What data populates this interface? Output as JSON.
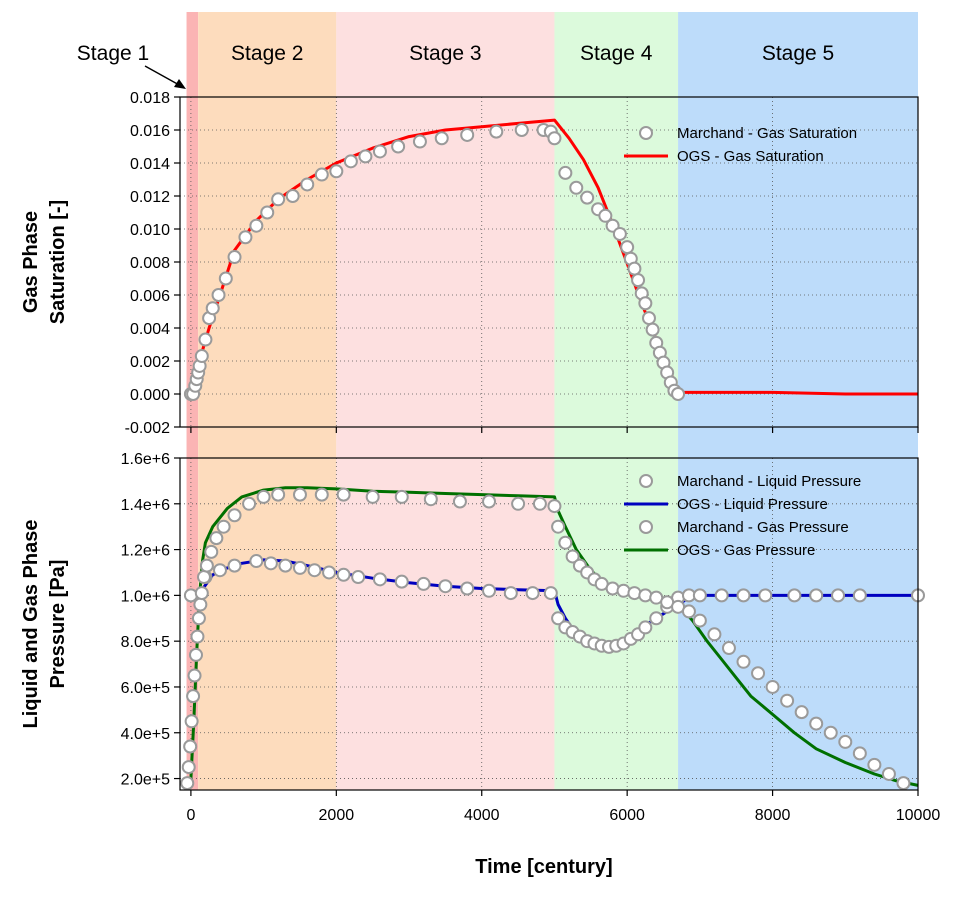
{
  "chart_data": [
    {
      "type": "line",
      "xlabel": "",
      "ylabel": "Gas Phase Saturation [-]",
      "ylabel_lines": [
        "Gas Phase",
        "Saturation [-]"
      ],
      "xlim": [
        -150,
        10000
      ],
      "ylim": [
        -0.002,
        0.018
      ],
      "yticks": [
        -0.002,
        0.0,
        0.002,
        0.004,
        0.006,
        0.008,
        0.01,
        0.012,
        0.014,
        0.016,
        0.018
      ],
      "ytick_labels": [
        "-0.002",
        "0.000",
        "0.002",
        "0.004",
        "0.006",
        "0.008",
        "0.010",
        "0.012",
        "0.014",
        "0.016",
        "0.018"
      ],
      "xticks": [
        0,
        2000,
        4000,
        6000,
        8000,
        10000
      ],
      "grid": true,
      "legend_position": "top-right",
      "series": [
        {
          "name": "Marchand - Gas Saturation",
          "marker": "circle",
          "color": "#9a9a9a",
          "x": [
            0,
            30,
            60,
            80,
            100,
            120,
            150,
            200,
            250,
            300,
            380,
            480,
            600,
            750,
            900,
            1050,
            1200,
            1400,
            1600,
            1800,
            2000,
            2200,
            2400,
            2600,
            2850,
            3150,
            3450,
            3800,
            4200,
            4550,
            4850,
            4950,
            5000,
            5150,
            5300,
            5450,
            5600,
            5700,
            5800,
            5900,
            6000,
            6050,
            6100,
            6150,
            6200,
            6250,
            6300,
            6350,
            6400,
            6450,
            6500,
            6550,
            6600,
            6650,
            6700
          ],
          "y": [
            0.0,
            0.0,
            0.0005,
            0.0009,
            0.0013,
            0.0017,
            0.0023,
            0.0033,
            0.0046,
            0.0052,
            0.006,
            0.007,
            0.0083,
            0.0095,
            0.0102,
            0.011,
            0.0118,
            0.012,
            0.0127,
            0.0133,
            0.0135,
            0.0141,
            0.0144,
            0.0147,
            0.015,
            0.0153,
            0.0155,
            0.0157,
            0.0159,
            0.016,
            0.016,
            0.0159,
            0.0155,
            0.0134,
            0.0125,
            0.0119,
            0.0112,
            0.0108,
            0.0102,
            0.0097,
            0.0089,
            0.0082,
            0.0076,
            0.0069,
            0.0061,
            0.0055,
            0.0046,
            0.0039,
            0.0031,
            0.0025,
            0.0019,
            0.0013,
            0.0007,
            0.0002,
            0.0
          ]
        },
        {
          "name": "OGS - Gas Saturation",
          "marker": "none",
          "color": "#ff0000",
          "x": [
            -60,
            60,
            100,
            150,
            250,
            400,
            600,
            900,
            1200,
            1600,
            2000,
            2500,
            3000,
            3500,
            4000,
            4500,
            5000,
            5200,
            5400,
            5600,
            5800,
            6000,
            6200,
            6400,
            6600,
            6700,
            7000,
            8000,
            9000,
            10000
          ],
          "y": [
            0.0,
            0.0,
            0.0015,
            0.0025,
            0.004,
            0.006,
            0.0087,
            0.0105,
            0.0118,
            0.013,
            0.014,
            0.0149,
            0.0156,
            0.016,
            0.0162,
            0.0164,
            0.0166,
            0.0155,
            0.0142,
            0.0125,
            0.0103,
            0.0079,
            0.0055,
            0.0033,
            0.0013,
            0.0001,
            0.0001,
            0.0001,
            0.0,
            0.0
          ]
        }
      ]
    },
    {
      "type": "line",
      "xlabel": "Time [century]",
      "ylabel": "Liquid and Gas Phase Pressure [Pa]",
      "ylabel_lines": [
        "Liquid and Gas Phase",
        "Pressure [Pa]"
      ],
      "xlim": [
        -150,
        10000
      ],
      "ylim": [
        150000,
        1600000
      ],
      "yticks": [
        200000,
        400000,
        600000,
        800000,
        1000000,
        1200000,
        1400000,
        1600000
      ],
      "ytick_labels": [
        "2.0e+5",
        "4.0e+5",
        "6.0e+5",
        "8.0e+5",
        "1.0e+6",
        "1.2e+6",
        "1.4e+6",
        "1.6e+6"
      ],
      "xticks": [
        0,
        2000,
        4000,
        6000,
        8000,
        10000
      ],
      "xtick_labels": [
        "0",
        "2000",
        "4000",
        "6000",
        "8000",
        "10000"
      ],
      "grid": true,
      "legend_position": "top-right",
      "series": [
        {
          "name": "Marchand - Liquid Pressure",
          "marker": "circle",
          "color": "#9a9a9a",
          "x": [
            0,
            200,
            400,
            600,
            900,
            1100,
            1300,
            1500,
            1700,
            1900,
            2100,
            2300,
            2600,
            2900,
            3200,
            3500,
            3800,
            4100,
            4400,
            4700,
            4950,
            5050,
            5150,
            5250,
            5350,
            5450,
            5550,
            5650,
            5750,
            5850,
            5950,
            6050,
            6150,
            6250,
            6400,
            6550,
            6700,
            6850,
            7000,
            7300,
            7600,
            7900,
            8300,
            8600,
            8900,
            9200,
            10000
          ],
          "y": [
            1000000,
            1080000,
            1110000,
            1130000,
            1150000,
            1140000,
            1130000,
            1120000,
            1110000,
            1100000,
            1090000,
            1080000,
            1070000,
            1060000,
            1050000,
            1040000,
            1030000,
            1020000,
            1010000,
            1010000,
            1010000,
            900000,
            860000,
            840000,
            820000,
            800000,
            790000,
            780000,
            775000,
            780000,
            790000,
            810000,
            830000,
            860000,
            900000,
            950000,
            990000,
            1000000,
            1000000,
            1000000,
            1000000,
            1000000,
            1000000,
            1000000,
            1000000,
            1000000,
            1000000
          ]
        },
        {
          "name": "OGS - Liquid Pressure",
          "marker": "none",
          "color": "#0000c0",
          "x": [
            -60,
            100,
            300,
            500,
            700,
            1000,
            1300,
            1600,
            2000,
            2500,
            3000,
            3500,
            4000,
            4500,
            5000,
            5050,
            5150,
            5300,
            5450,
            5600,
            5750,
            5900,
            6100,
            6300,
            6500,
            6700,
            6850,
            7000,
            8000,
            9000,
            10000
          ],
          "y": [
            1000000,
            1000000,
            1090000,
            1120000,
            1140000,
            1155000,
            1150000,
            1130000,
            1100000,
            1075000,
            1055000,
            1040000,
            1030000,
            1025000,
            1020000,
            960000,
            900000,
            830000,
            790000,
            770000,
            770000,
            800000,
            840000,
            880000,
            920000,
            960000,
            990000,
            1000000,
            1000000,
            1000000,
            1000000
          ]
        },
        {
          "name": "Marchand - Gas Pressure",
          "marker": "circle",
          "color": "#9a9a9a",
          "x": [
            -50,
            -30,
            -10,
            10,
            30,
            50,
            70,
            90,
            110,
            130,
            150,
            180,
            220,
            280,
            350,
            450,
            600,
            800,
            1000,
            1200,
            1500,
            1800,
            2100,
            2500,
            2900,
            3300,
            3700,
            4100,
            4500,
            4800,
            5000,
            5050,
            5150,
            5250,
            5350,
            5450,
            5550,
            5650,
            5800,
            5950,
            6100,
            6250,
            6400,
            6550,
            6700,
            6850,
            7000,
            7200,
            7400,
            7600,
            7800,
            8000,
            8200,
            8400,
            8600,
            8800,
            9000,
            9200,
            9400,
            9600,
            9800
          ],
          "y": [
            180000,
            250000,
            340000,
            450000,
            560000,
            650000,
            740000,
            820000,
            900000,
            960000,
            1010000,
            1080000,
            1130000,
            1190000,
            1250000,
            1300000,
            1350000,
            1400000,
            1430000,
            1440000,
            1440000,
            1440000,
            1440000,
            1430000,
            1430000,
            1420000,
            1410000,
            1410000,
            1400000,
            1400000,
            1390000,
            1300000,
            1230000,
            1170000,
            1130000,
            1100000,
            1070000,
            1050000,
            1030000,
            1020000,
            1010000,
            1000000,
            990000,
            970000,
            950000,
            930000,
            890000,
            830000,
            770000,
            710000,
            660000,
            600000,
            540000,
            490000,
            440000,
            400000,
            360000,
            310000,
            260000,
            220000,
            180000
          ]
        },
        {
          "name": "OGS - Gas Pressure",
          "marker": "none",
          "color": "#007000",
          "x": [
            -60,
            0,
            40,
            80,
            120,
            160,
            200,
            300,
            500,
            700,
            1000,
            1300,
            1600,
            2000,
            2500,
            3000,
            3500,
            4000,
            4500,
            5000,
            5050,
            5150,
            5300,
            5500,
            5700,
            5900,
            6100,
            6300,
            6500,
            6700,
            6900,
            7100,
            7300,
            7500,
            7700,
            8000,
            8300,
            8600,
            9000,
            9400,
            9700,
            10000
          ],
          "y": [
            150000,
            200000,
            450000,
            750000,
            1000000,
            1150000,
            1230000,
            1300000,
            1380000,
            1430000,
            1460000,
            1470000,
            1470000,
            1465000,
            1455000,
            1450000,
            1445000,
            1440000,
            1435000,
            1430000,
            1370000,
            1300000,
            1200000,
            1110000,
            1050000,
            1020000,
            1005000,
            995000,
            985000,
            960000,
            890000,
            800000,
            720000,
            640000,
            560000,
            480000,
            400000,
            330000,
            270000,
            220000,
            190000,
            170000
          ]
        }
      ]
    }
  ],
  "stages": [
    {
      "label": "Stage 1",
      "x0": -60,
      "x1": 100,
      "color": "#fbb4b4"
    },
    {
      "label": "Stage 2",
      "x0": 100,
      "x1": 2000,
      "color": "#fddcbd"
    },
    {
      "label": "Stage 3",
      "x0": 2000,
      "x1": 5000,
      "color": "#fde0e0"
    },
    {
      "label": "Stage 4",
      "x0": 5000,
      "x1": 6700,
      "color": "#dcfadc"
    },
    {
      "label": "Stage 5",
      "x0": 6700,
      "x1": 10000,
      "color": "#bddcfa"
    }
  ]
}
